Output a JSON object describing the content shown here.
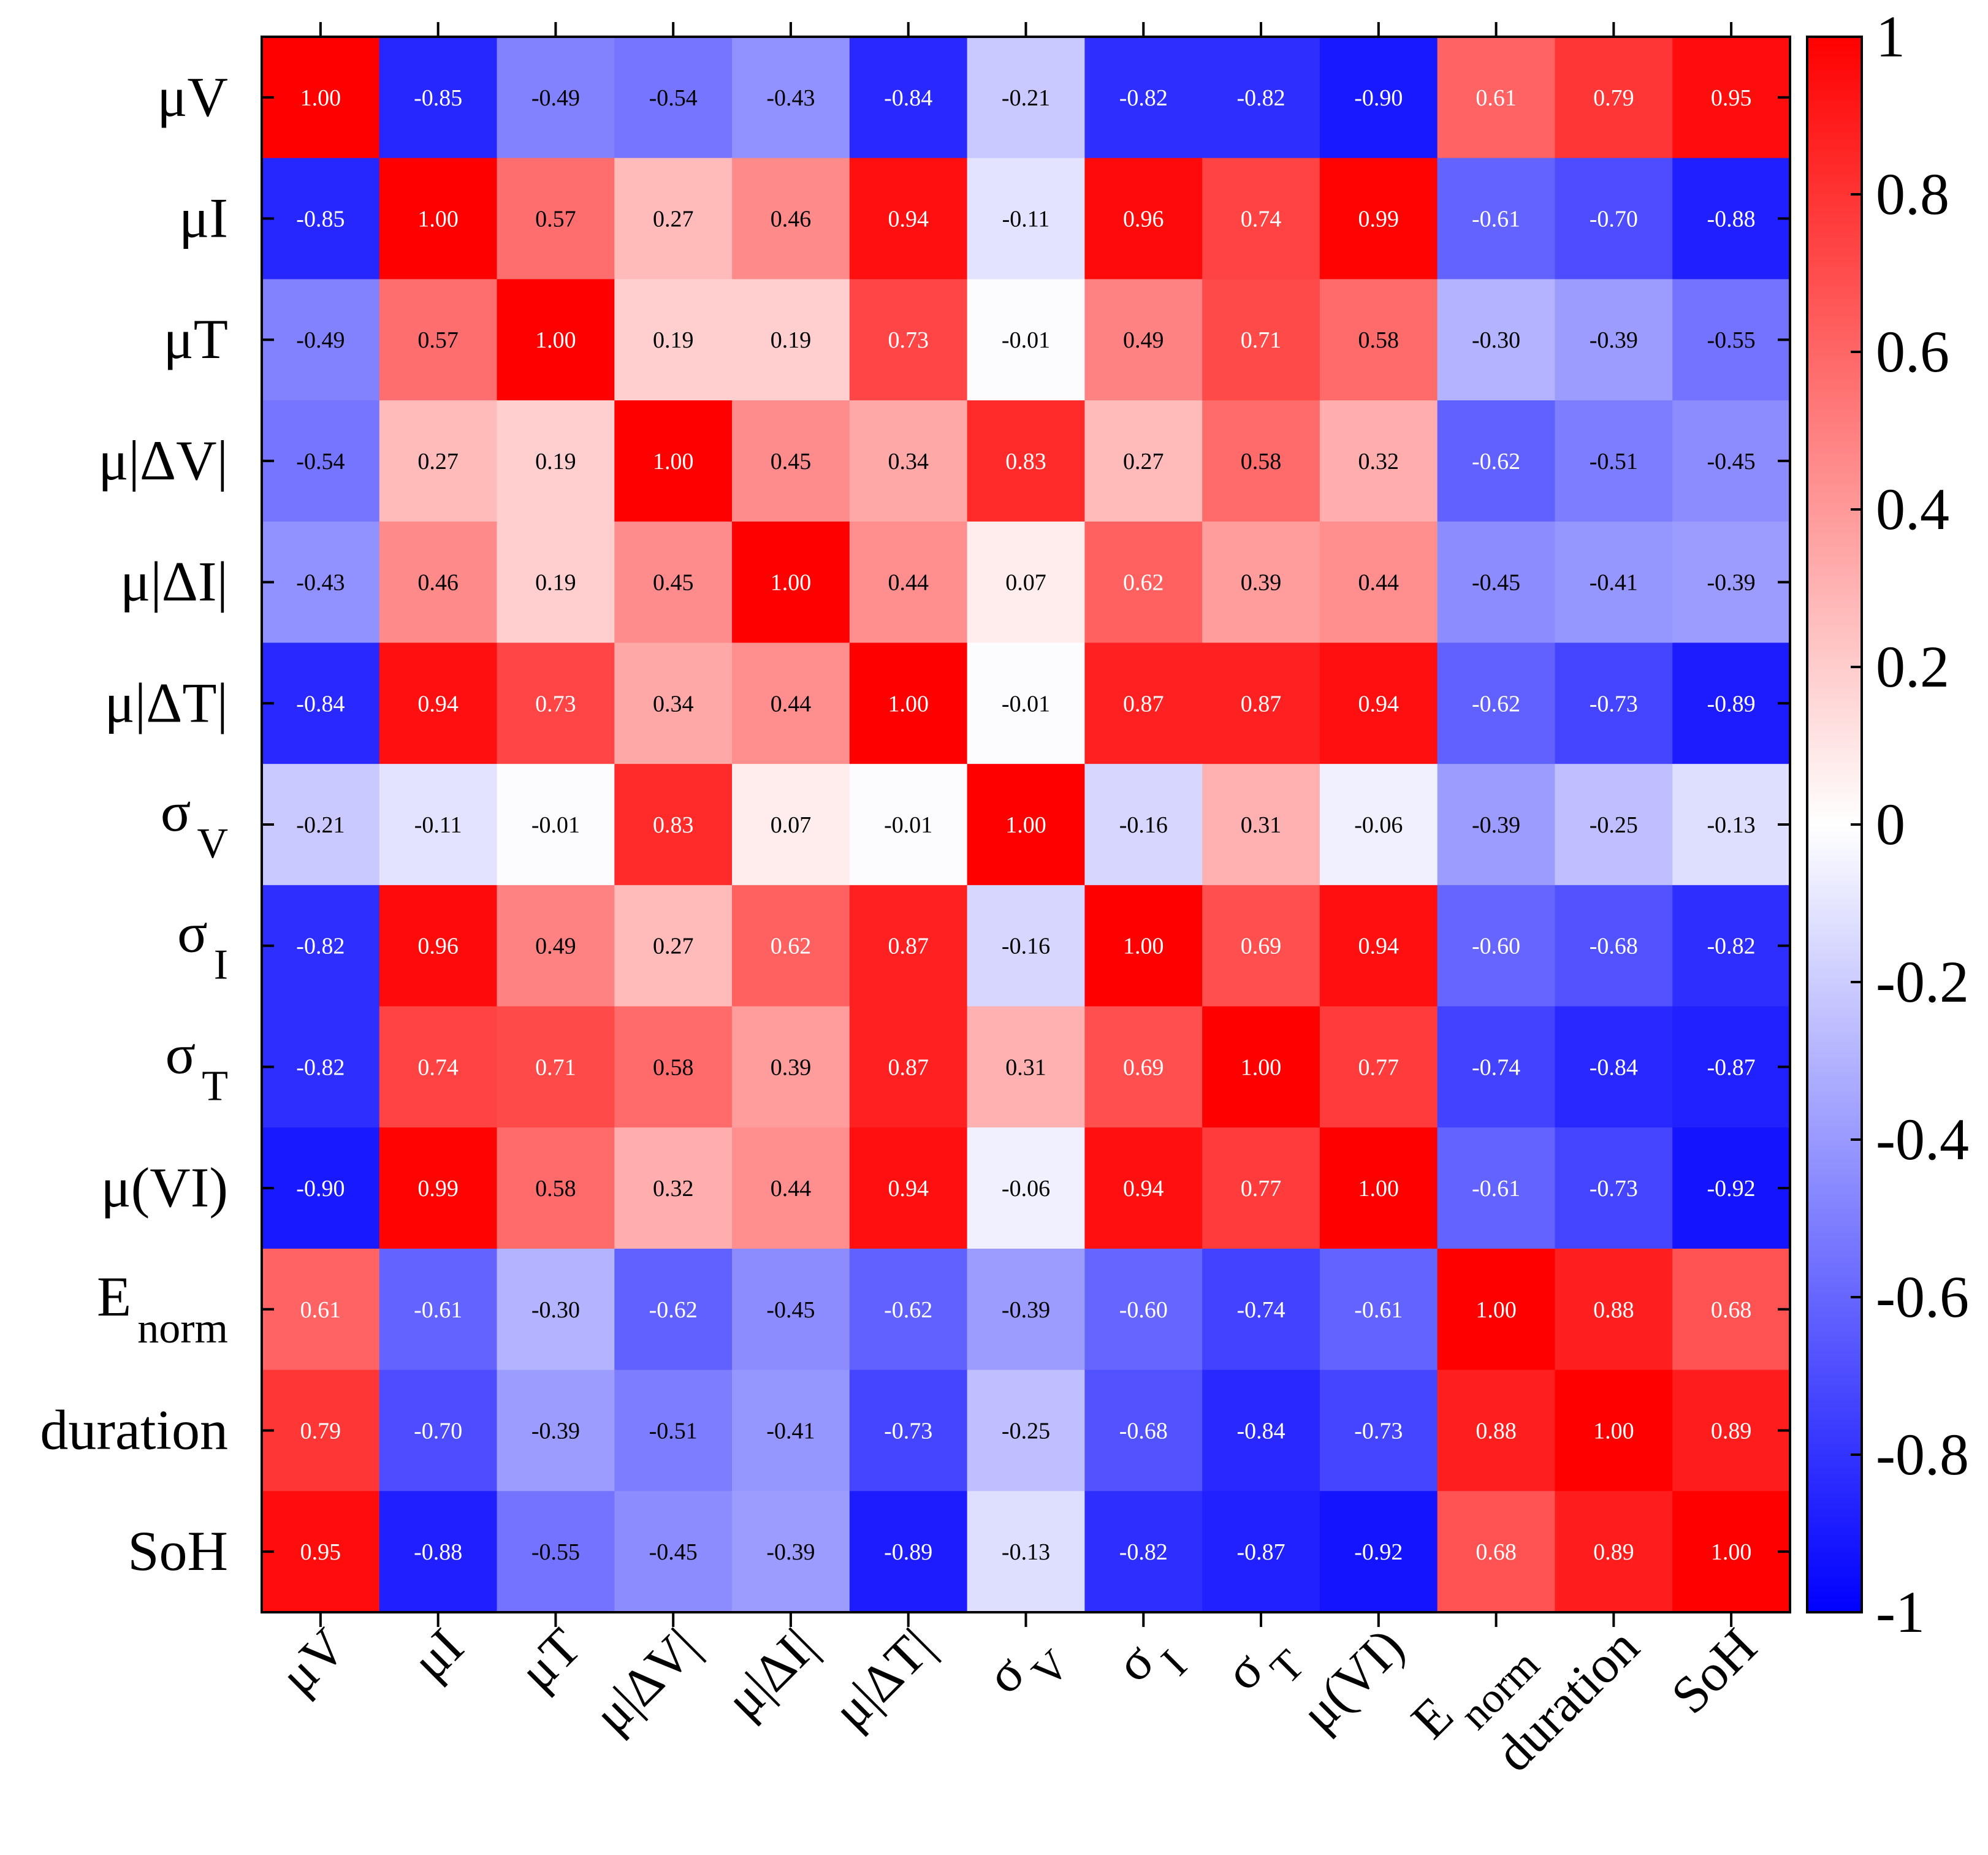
{
  "chart_data": {
    "type": "heatmap",
    "title": "",
    "row_labels": [
      {
        "base": "μV",
        "sub": ""
      },
      {
        "base": "μI",
        "sub": ""
      },
      {
        "base": "μT",
        "sub": ""
      },
      {
        "base": "μ|ΔV|",
        "sub": ""
      },
      {
        "base": "μ|ΔI|",
        "sub": ""
      },
      {
        "base": "μ|ΔT|",
        "sub": ""
      },
      {
        "base": "σ",
        "sub": "V"
      },
      {
        "base": "σ",
        "sub": "I"
      },
      {
        "base": "σ",
        "sub": "T"
      },
      {
        "base": "μ(VI)",
        "sub": ""
      },
      {
        "base": "E",
        "sub": "norm"
      },
      {
        "base": "duration",
        "sub": ""
      },
      {
        "base": "SoH",
        "sub": ""
      }
    ],
    "col_labels": [
      {
        "base": "μV",
        "sub": ""
      },
      {
        "base": "μI",
        "sub": ""
      },
      {
        "base": "μT",
        "sub": ""
      },
      {
        "base": "μ|ΔV|",
        "sub": ""
      },
      {
        "base": "μ|ΔI|",
        "sub": ""
      },
      {
        "base": "μ|ΔT|",
        "sub": ""
      },
      {
        "base": "σ",
        "sub": "V"
      },
      {
        "base": "σ",
        "sub": "I"
      },
      {
        "base": "σ",
        "sub": "T"
      },
      {
        "base": "μ(VI)",
        "sub": ""
      },
      {
        "base": "E",
        "sub": "norm"
      },
      {
        "base": "duration",
        "sub": ""
      },
      {
        "base": "SoH",
        "sub": ""
      }
    ],
    "values": [
      [
        1.0,
        -0.85,
        -0.49,
        -0.54,
        -0.43,
        -0.84,
        -0.21,
        -0.82,
        -0.82,
        -0.9,
        0.61,
        0.79,
        0.95
      ],
      [
        -0.85,
        1.0,
        0.57,
        0.27,
        0.46,
        0.94,
        -0.11,
        0.96,
        0.74,
        0.99,
        -0.61,
        -0.7,
        -0.88
      ],
      [
        -0.49,
        0.57,
        1.0,
        0.19,
        0.19,
        0.73,
        -0.01,
        0.49,
        0.71,
        0.58,
        -0.3,
        -0.39,
        -0.55
      ],
      [
        -0.54,
        0.27,
        0.19,
        1.0,
        0.45,
        0.34,
        0.83,
        0.27,
        0.58,
        0.32,
        -0.62,
        -0.51,
        -0.45
      ],
      [
        -0.43,
        0.46,
        0.19,
        0.45,
        1.0,
        0.44,
        0.07,
        0.62,
        0.39,
        0.44,
        -0.45,
        -0.41,
        -0.39
      ],
      [
        -0.84,
        0.94,
        0.73,
        0.34,
        0.44,
        1.0,
        -0.01,
        0.87,
        0.87,
        0.94,
        -0.62,
        -0.73,
        -0.89
      ],
      [
        -0.21,
        -0.11,
        -0.01,
        0.83,
        0.07,
        -0.01,
        1.0,
        -0.16,
        0.31,
        -0.06,
        -0.39,
        -0.25,
        -0.13
      ],
      [
        -0.82,
        0.96,
        0.49,
        0.27,
        0.62,
        0.87,
        -0.16,
        1.0,
        0.69,
        0.94,
        -0.6,
        -0.68,
        -0.82
      ],
      [
        -0.82,
        0.74,
        0.71,
        0.58,
        0.39,
        0.87,
        0.31,
        0.69,
        1.0,
        0.77,
        -0.74,
        -0.84,
        -0.87
      ],
      [
        -0.9,
        0.99,
        0.58,
        0.32,
        0.44,
        0.94,
        -0.06,
        0.94,
        0.77,
        1.0,
        -0.61,
        -0.73,
        -0.92
      ],
      [
        0.61,
        -0.61,
        -0.3,
        -0.62,
        -0.45,
        -0.62,
        -0.39,
        -0.6,
        -0.74,
        -0.61,
        1.0,
        0.88,
        0.68
      ],
      [
        0.79,
        -0.7,
        -0.39,
        -0.51,
        -0.41,
        -0.73,
        -0.25,
        -0.68,
        -0.84,
        -0.73,
        0.88,
        1.0,
        0.89
      ],
      [
        0.95,
        -0.88,
        -0.55,
        -0.45,
        -0.39,
        -0.89,
        -0.13,
        -0.82,
        -0.87,
        -0.92,
        0.68,
        0.89,
        1.0
      ]
    ],
    "colorbar": {
      "range": [
        -1,
        1
      ],
      "ticks": [
        -1,
        -0.8,
        -0.6,
        -0.4,
        -0.2,
        0,
        0.2,
        0.4,
        0.6,
        0.8,
        1
      ],
      "tick_labels": [
        "-1",
        "-0.8",
        "-0.6",
        "-0.4",
        "-0.2",
        "0",
        "0.2",
        "0.4",
        "0.6",
        "0.8",
        "1"
      ],
      "colormap": "blue-white-red",
      "colors": {
        "negative": "#0000ff",
        "zero": "#ffffff",
        "positive": "#ff0000"
      }
    },
    "grid": false
  }
}
